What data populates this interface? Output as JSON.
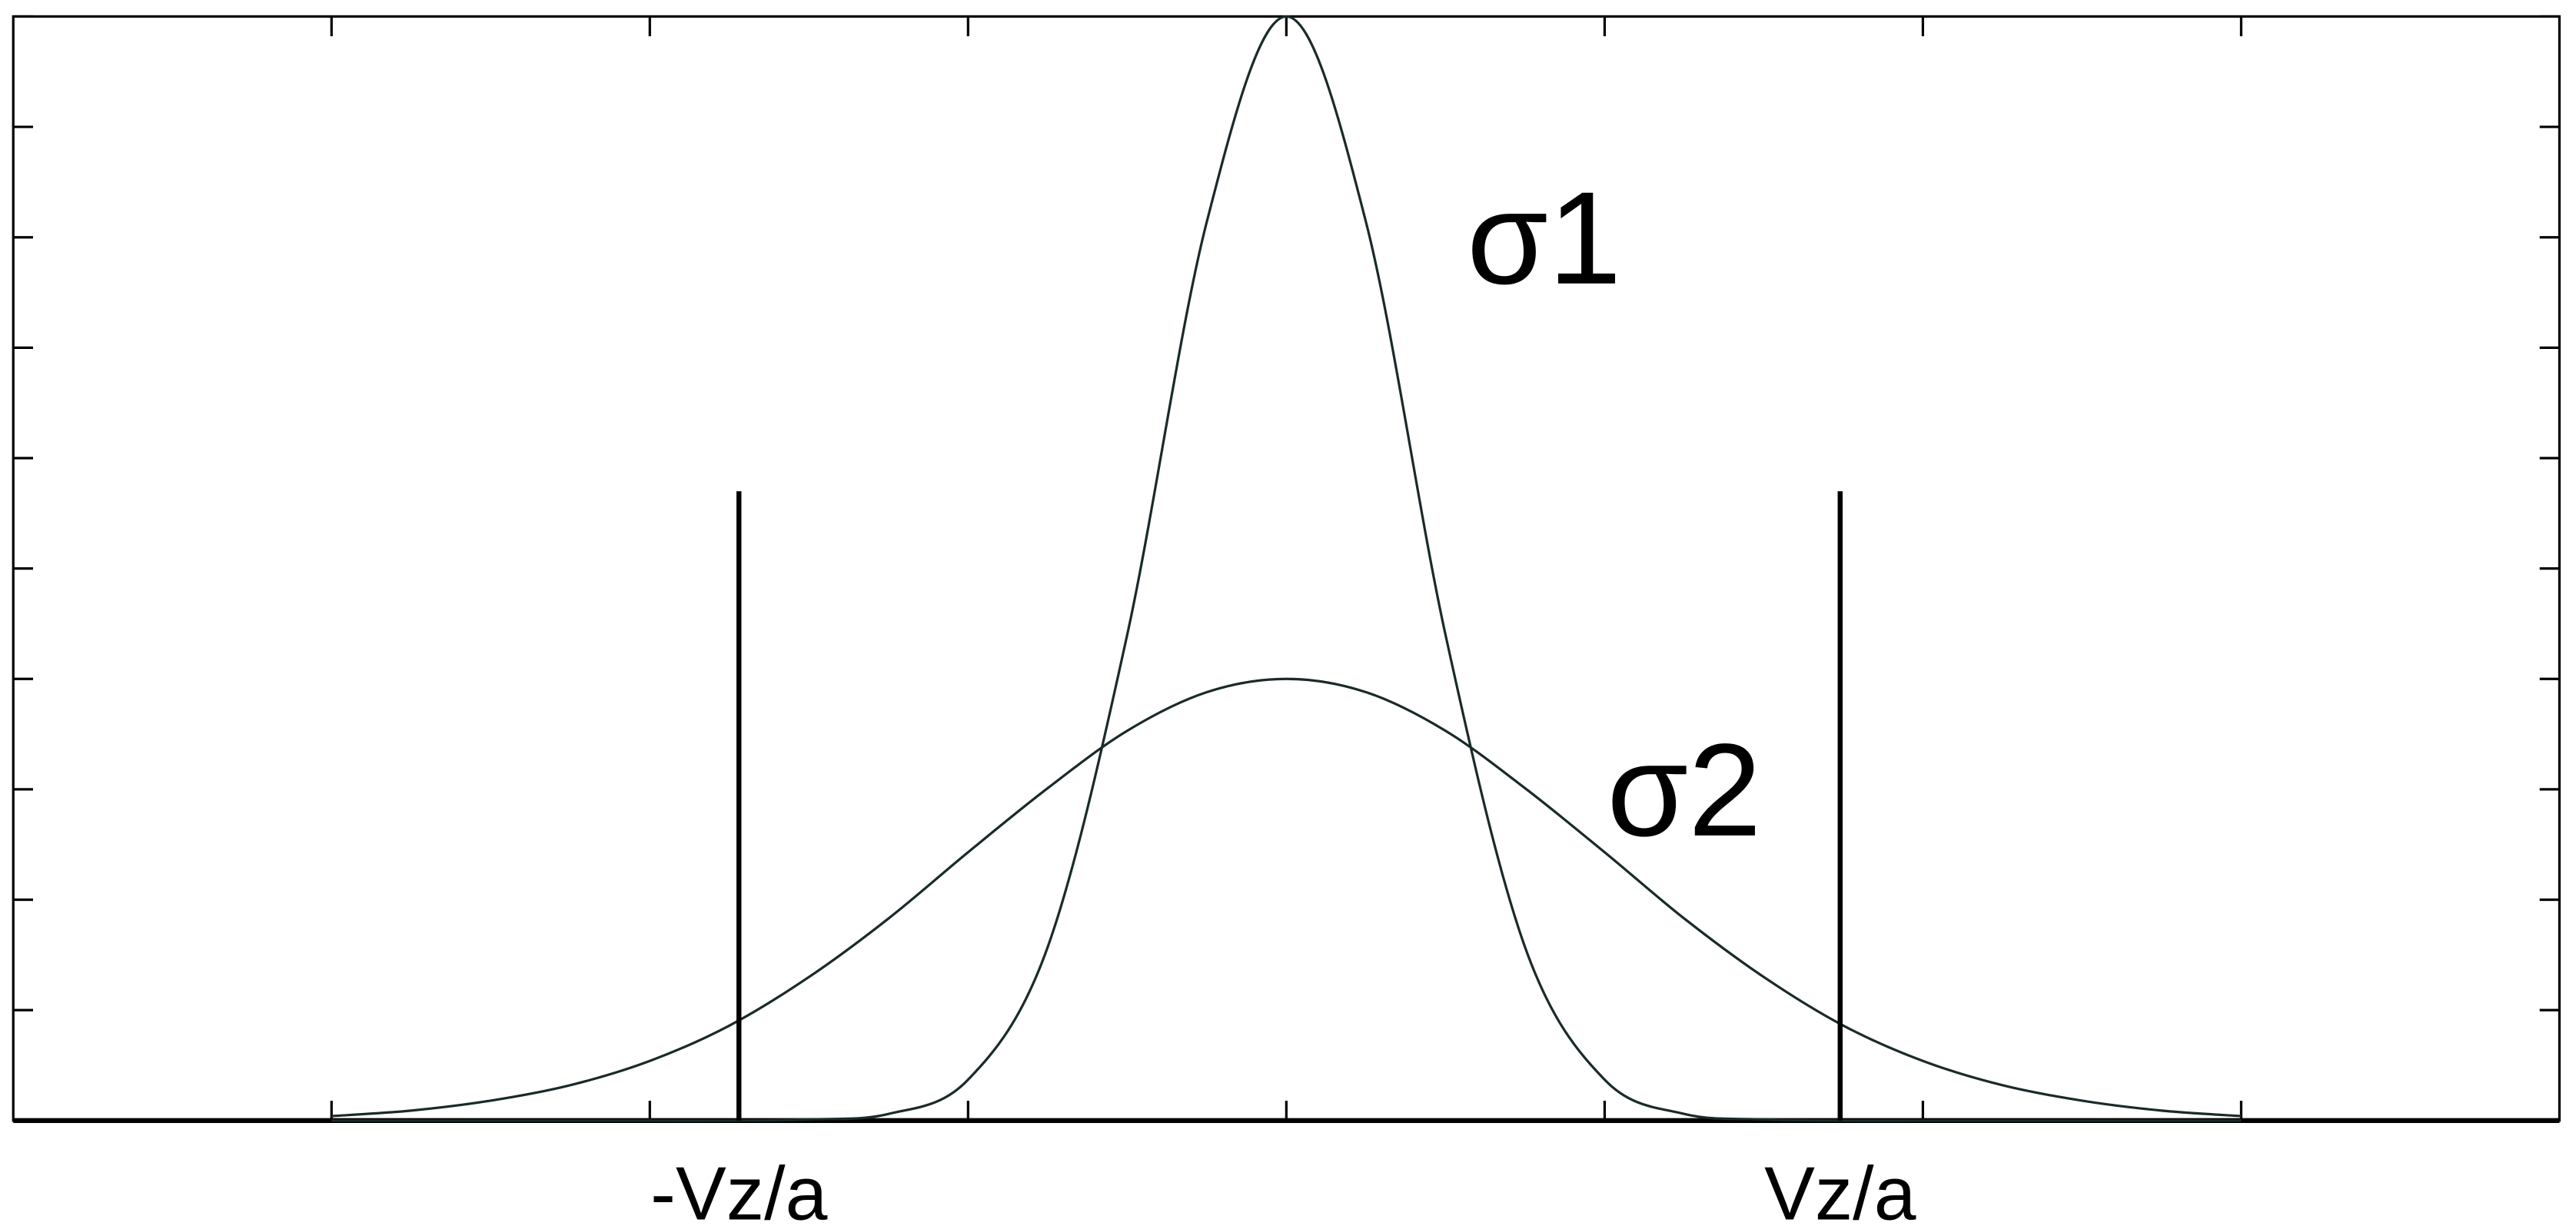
{
  "chart_data": {
    "type": "line",
    "x": [
      -3,
      -2.75,
      -2.5,
      -2.25,
      -2,
      -1.75,
      -1.5,
      -1.25,
      -1,
      -0.75,
      -0.5,
      -0.25,
      0,
      0.25,
      0.5,
      0.75,
      1,
      1.25,
      1.5,
      1.75,
      2,
      2.25,
      2.5,
      2.75,
      3
    ],
    "series": [
      {
        "name": "σ1",
        "color": "#1a2a2a",
        "values": [
          0,
          0,
          0,
          0,
          0,
          0,
          0.01,
          0.06,
          0.37,
          1.57,
          4.4,
          8.14,
          10,
          8.14,
          4.4,
          1.57,
          0.37,
          0.06,
          0.01,
          0,
          0,
          0,
          0,
          0,
          0
        ]
      },
      {
        "name": "σ2",
        "color": "#1a2a2a",
        "values": [
          0.04,
          0.09,
          0.18,
          0.32,
          0.54,
          0.86,
          1.3,
          1.83,
          2.43,
          3.01,
          3.53,
          3.88,
          4,
          3.88,
          3.53,
          3.01,
          2.43,
          1.83,
          1.3,
          0.86,
          0.54,
          0.32,
          0.18,
          0.09,
          0.04
        ]
      }
    ],
    "markers": [
      {
        "x": -1.72,
        "height": 5.7,
        "label": "-Vz/a"
      },
      {
        "x": 1.74,
        "height": 5.7,
        "label": "Vz/a"
      }
    ],
    "xlim": [
      -4,
      4
    ],
    "ylim": [
      0,
      10
    ],
    "xticks": [
      -3,
      -2,
      -1,
      0,
      1,
      2,
      3
    ],
    "yticks": [
      0,
      1,
      2,
      3,
      4,
      5,
      6,
      7,
      8,
      9,
      10
    ]
  }
}
